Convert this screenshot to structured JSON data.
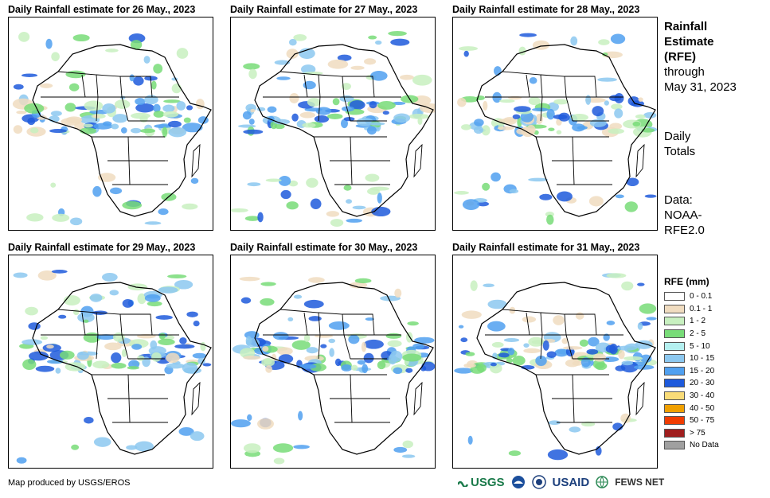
{
  "panels": [
    {
      "title": "Daily Rainfall estimate for 26 May., 2023"
    },
    {
      "title": "Daily Rainfall estimate for 27 May., 2023"
    },
    {
      "title": "Daily Rainfall estimate for 28 May., 2023"
    },
    {
      "title": "Daily Rainfall estimate for 29 May., 2023"
    },
    {
      "title": "Daily Rainfall estimate for 30 May., 2023"
    },
    {
      "title": "Daily Rainfall estimate for 31 May., 2023"
    }
  ],
  "sidebar": {
    "title_line1": "Rainfall",
    "title_line2": "Estimate",
    "title_line3": "(RFE)",
    "through": "through",
    "through_date": "May 31, 2023",
    "daily1": "Daily",
    "daily2": "Totals",
    "data1": "Data:",
    "data2": "NOAA-",
    "data3": "RFE2.0"
  },
  "legend": {
    "title": "RFE (mm)",
    "items": [
      {
        "label": "0 - 0.1",
        "color": "#ffffff"
      },
      {
        "label": "0.1 - 1",
        "color": "#f0dcc0"
      },
      {
        "label": "1 - 2",
        "color": "#c8f0c0"
      },
      {
        "label": "2 - 5",
        "color": "#78dc78"
      },
      {
        "label": "5 - 10",
        "color": "#b4f0f0"
      },
      {
        "label": "10 - 15",
        "color": "#8cc8f0"
      },
      {
        "label": "15 - 20",
        "color": "#50a0f0"
      },
      {
        "label": "20 - 30",
        "color": "#1e5adc"
      },
      {
        "label": "30 - 40",
        "color": "#fadc78"
      },
      {
        "label": "40 - 50",
        "color": "#f0a000"
      },
      {
        "label": "50 - 75",
        "color": "#f03c00"
      },
      {
        "label": "> 75",
        "color": "#a01e1e"
      },
      {
        "label": "No Data",
        "color": "#a0a0a0"
      }
    ]
  },
  "footer": {
    "credit": "Map produced by USGS/EROS"
  },
  "logos": {
    "usgs": "USGS",
    "usaid": "USAID",
    "fews": "FEWS NET"
  }
}
